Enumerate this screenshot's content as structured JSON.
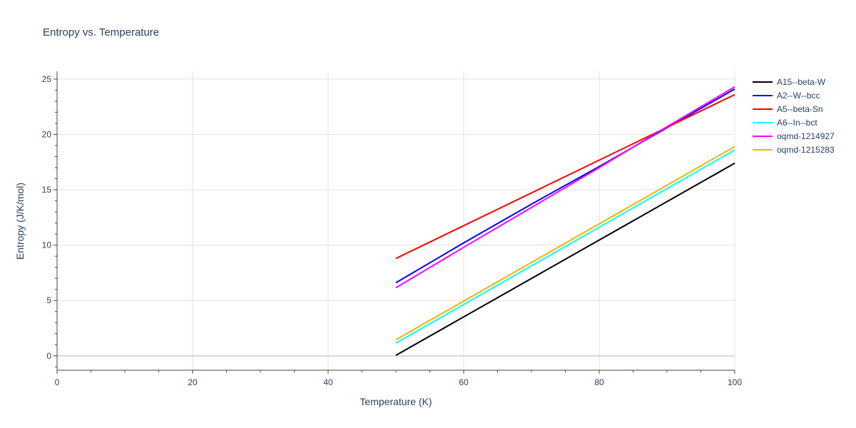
{
  "chart_data": {
    "type": "line",
    "title": "Entropy vs. Temperature",
    "xlabel": "Temperature (K)",
    "ylabel": "Entropy (J/K/mol)",
    "xlim": [
      0,
      100
    ],
    "ylim": [
      -1.3,
      25.7
    ],
    "x_ticks": [
      0,
      20,
      40,
      60,
      80,
      100
    ],
    "y_ticks": [
      0,
      5,
      10,
      15,
      20,
      25
    ],
    "x_tick_labels": [
      "0",
      "20",
      "40",
      "60",
      "80",
      "100"
    ],
    "y_tick_labels": [
      "0",
      "5",
      "10",
      "15",
      "20",
      "25"
    ],
    "grid": true,
    "legend_position": "right",
    "series": [
      {
        "name": "A15--beta-W",
        "color": "#000000",
        "x": [
          50,
          100
        ],
        "y": [
          0.05,
          17.4
        ]
      },
      {
        "name": "A2--W--bcc",
        "color": "#0000ff",
        "x": [
          50,
          60,
          70,
          80,
          90,
          100
        ],
        "y": [
          6.6,
          10.2,
          13.7,
          17.1,
          20.6,
          24.1
        ]
      },
      {
        "name": "A5--beta-Sn",
        "color": "#ff0000",
        "x": [
          50,
          100
        ],
        "y": [
          8.8,
          23.6
        ]
      },
      {
        "name": "A6--In--bct",
        "color": "#00ffff",
        "x": [
          50,
          100
        ],
        "y": [
          1.15,
          18.6
        ]
      },
      {
        "name": "oqmd-1214927",
        "color": "#ff00ff",
        "x": [
          50,
          60,
          70,
          80,
          90,
          100
        ],
        "y": [
          6.15,
          9.8,
          13.4,
          17.0,
          20.7,
          24.3
        ]
      },
      {
        "name": "oqmd-1215283",
        "color": "#f0b400",
        "x": [
          50,
          100
        ],
        "y": [
          1.45,
          18.9
        ]
      }
    ]
  }
}
